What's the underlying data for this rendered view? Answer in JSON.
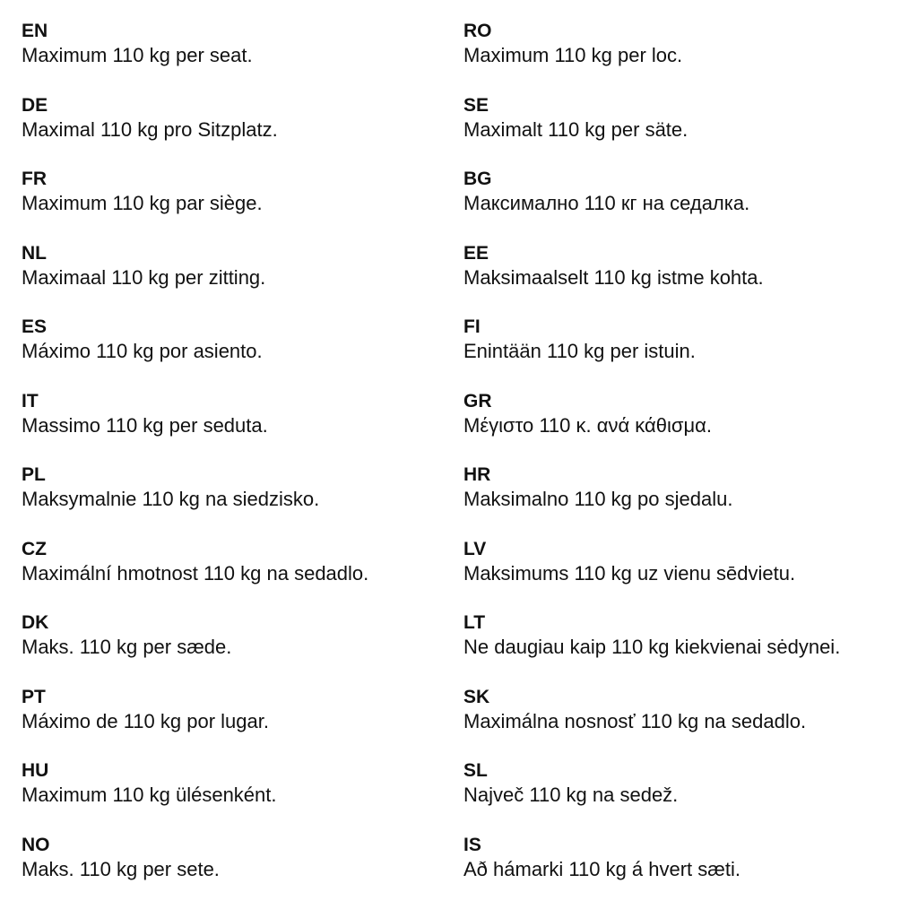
{
  "left": [
    {
      "code": "EN",
      "text": "Maximum 110 kg per seat."
    },
    {
      "code": "DE",
      "text": "Maximal 110 kg pro Sitzplatz."
    },
    {
      "code": "FR",
      "text": "Maximum 110 kg par siège."
    },
    {
      "code": "NL",
      "text": "Maximaal 110 kg per zitting."
    },
    {
      "code": "ES",
      "text": "Máximo 110 kg por asiento."
    },
    {
      "code": "IT",
      "text": "Massimo 110 kg per seduta."
    },
    {
      "code": "PL",
      "text": "Maksymalnie 110 kg na siedzisko."
    },
    {
      "code": "CZ",
      "text": "Maximální hmotnost 110 kg na sedadlo."
    },
    {
      "code": "DK",
      "text": "Maks. 110 kg per sæde."
    },
    {
      "code": "PT",
      "text": "Máximo de 110 kg por lugar."
    },
    {
      "code": "HU",
      "text": "Maximum 110 kg ülésenként."
    },
    {
      "code": "NO",
      "text": "Maks. 110 kg per sete."
    }
  ],
  "right": [
    {
      "code": "RO",
      "text": "Maximum 110 kg per loc."
    },
    {
      "code": "SE",
      "text": "Maximalt 110 kg per säte."
    },
    {
      "code": "BG",
      "text": "Максимално 110 кг на седалка."
    },
    {
      "code": "EE",
      "text": "Maksimaalselt 110 kg istme kohta."
    },
    {
      "code": "FI",
      "text": "Enintään 110 kg per istuin."
    },
    {
      "code": "GR",
      "text": "Μέγιστο 110 κ. ανά κάθισμα."
    },
    {
      "code": "HR",
      "text": "Maksimalno 110 kg po sjedalu."
    },
    {
      "code": "LV",
      "text": "Maksimums 110 kg uz vienu sēdvietu."
    },
    {
      "code": "LT",
      "text": "Ne daugiau kaip 110 kg kiekvienai sėdynei."
    },
    {
      "code": "SK",
      "text": "Maximálna nosnosť 110 kg na sedadlo."
    },
    {
      "code": "SL",
      "text": "Največ 110 kg na sedež."
    },
    {
      "code": "IS",
      "text": "Að hámarki 110 kg á hvert sæti."
    }
  ]
}
